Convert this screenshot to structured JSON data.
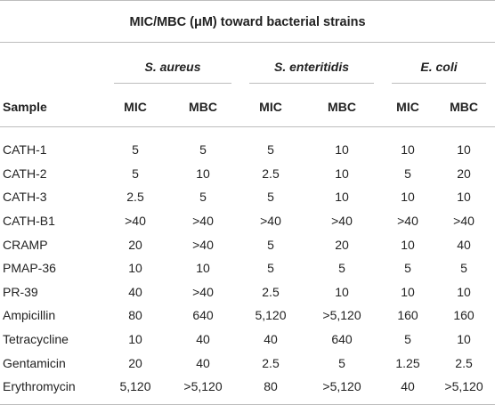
{
  "title": "MIC/MBC (μM) toward bacterial strains",
  "groups": [
    "S. aureus",
    "S. enteritidis",
    "E. coli"
  ],
  "headers": {
    "sample": "Sample",
    "mic": "MIC",
    "mbc": "MBC"
  },
  "rows": [
    {
      "sample": "CATH-1",
      "values": [
        "5",
        "5",
        "5",
        "10",
        "10",
        "10"
      ]
    },
    {
      "sample": "CATH-2",
      "values": [
        "5",
        "10",
        "2.5",
        "10",
        "5",
        "20"
      ]
    },
    {
      "sample": "CATH-3",
      "values": [
        "2.5",
        "5",
        "5",
        "10",
        "10",
        "10"
      ]
    },
    {
      "sample": "CATH-B1",
      "values": [
        ">40",
        ">40",
        ">40",
        ">40",
        ">40",
        ">40"
      ]
    },
    {
      "sample": "CRAMP",
      "values": [
        "20",
        ">40",
        "5",
        "20",
        "10",
        "40"
      ]
    },
    {
      "sample": "PMAP-36",
      "values": [
        "10",
        "10",
        "5",
        "5",
        "5",
        "5"
      ]
    },
    {
      "sample": "PR-39",
      "values": [
        "40",
        ">40",
        "2.5",
        "10",
        "10",
        "10"
      ]
    },
    {
      "sample": "Ampicillin",
      "values": [
        "80",
        "640",
        "5,120",
        ">5,120",
        "160",
        "160"
      ]
    },
    {
      "sample": "Tetracycline",
      "values": [
        "10",
        "40",
        "40",
        "640",
        "5",
        "10"
      ]
    },
    {
      "sample": "Gentamicin",
      "values": [
        "20",
        "40",
        "2.5",
        "5",
        "1.25",
        "2.5"
      ]
    },
    {
      "sample": "Erythromycin",
      "values": [
        "5,120",
        ">5,120",
        "80",
        ">5,120",
        "40",
        ">5,120"
      ]
    }
  ]
}
